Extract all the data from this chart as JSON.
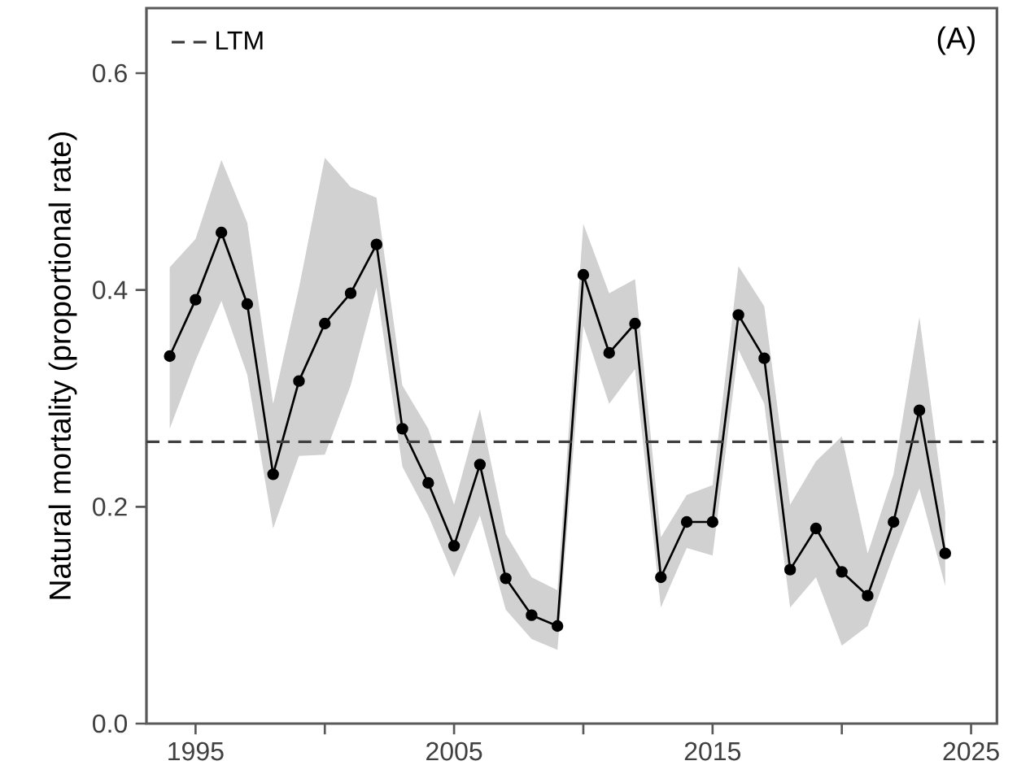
{
  "chart_data": {
    "type": "line",
    "ylabel": "Natural mortality (proportional rate)",
    "annotations": [
      "(A)"
    ],
    "x": [
      1994,
      1995,
      1996,
      1997,
      1998,
      1999,
      2000,
      2001,
      2002,
      2003,
      2004,
      2005,
      2006,
      2007,
      2008,
      2009,
      2010,
      2011,
      2012,
      2013,
      2014,
      2015,
      2016,
      2017,
      2018,
      2019,
      2020,
      2021,
      2022,
      2023,
      2024
    ],
    "series": [
      {
        "color": "#000000",
        "values": [
          0.339,
          0.391,
          0.453,
          0.387,
          0.23,
          0.316,
          0.369,
          0.397,
          0.442,
          0.272,
          0.222,
          0.164,
          0.239,
          0.134,
          0.1,
          0.09,
          0.414,
          0.342,
          0.369,
          0.135,
          0.186,
          0.186,
          0.377,
          0.337,
          0.142,
          0.18,
          0.14,
          0.118,
          0.186,
          0.289,
          0.157
        ],
        "lower": [
          0.272,
          0.335,
          0.39,
          0.322,
          0.18,
          0.247,
          0.248,
          0.312,
          0.402,
          0.237,
          0.192,
          0.135,
          0.192,
          0.105,
          0.078,
          0.068,
          0.367,
          0.295,
          0.327,
          0.107,
          0.162,
          0.155,
          0.345,
          0.295,
          0.107,
          0.135,
          0.072,
          0.09,
          0.155,
          0.217,
          0.127
        ],
        "upper": [
          0.421,
          0.447,
          0.52,
          0.462,
          0.295,
          0.402,
          0.522,
          0.495,
          0.485,
          0.312,
          0.272,
          0.202,
          0.29,
          0.175,
          0.135,
          0.123,
          0.461,
          0.397,
          0.41,
          0.172,
          0.211,
          0.22,
          0.422,
          0.385,
          0.202,
          0.242,
          0.265,
          0.157,
          0.23,
          0.375,
          0.195
        ]
      }
    ],
    "ref_lines": [
      {
        "axis": "y",
        "value": 0.26,
        "label": "LTM",
        "line_style": "dashed",
        "color": "#404040"
      }
    ],
    "xlim": [
      1993.1,
      2026.0
    ],
    "ylim": [
      0,
      0.66
    ],
    "xticks": [
      1995,
      {
        "value": 2000,
        "label": null
      },
      2005,
      {
        "value": 2010,
        "label": null
      },
      2015,
      {
        "value": 2020,
        "label": null
      },
      2025
    ],
    "yticks": [
      {
        "value": 0,
        "label": "0.0"
      },
      0.2,
      0.4,
      0.6
    ],
    "marker": "circle",
    "line_style": "solid",
    "grid": false,
    "legend": "top left"
  }
}
